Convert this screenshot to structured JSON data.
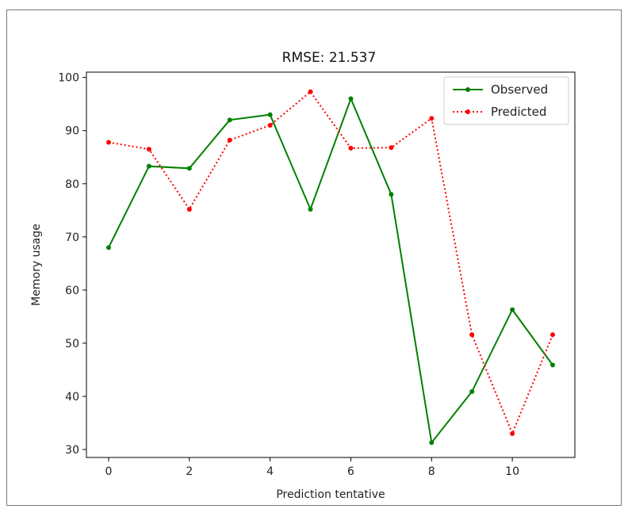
{
  "chart_data": {
    "type": "line",
    "title": "RMSE: 21.537",
    "xlabel": "Prediction tentative",
    "ylabel": "Memory usage",
    "xlim": [
      -0.55,
      11.55
    ],
    "ylim": [
      28.5,
      101
    ],
    "xticks": [
      0,
      2,
      4,
      6,
      8,
      10
    ],
    "yticks": [
      30,
      40,
      50,
      60,
      70,
      80,
      90,
      100
    ],
    "grid": false,
    "legend": "top-right",
    "x": [
      0,
      1,
      2,
      3,
      4,
      5,
      6,
      7,
      8,
      9,
      10,
      11
    ],
    "series": [
      {
        "name": "Observed",
        "color": "#008000",
        "linestyle": "solid",
        "marker": "dot",
        "values": [
          68,
          83.3,
          82.9,
          92,
          93,
          75.2,
          96,
          78,
          31.3,
          40.9,
          56.3,
          45.9
        ]
      },
      {
        "name": "Predicted",
        "color": "#ff0000",
        "linestyle": "dotted",
        "marker": "dot",
        "values": [
          87.8,
          86.5,
          75.2,
          88.2,
          91,
          97.3,
          86.7,
          86.8,
          92.3,
          51.6,
          33,
          51.6
        ]
      }
    ]
  }
}
